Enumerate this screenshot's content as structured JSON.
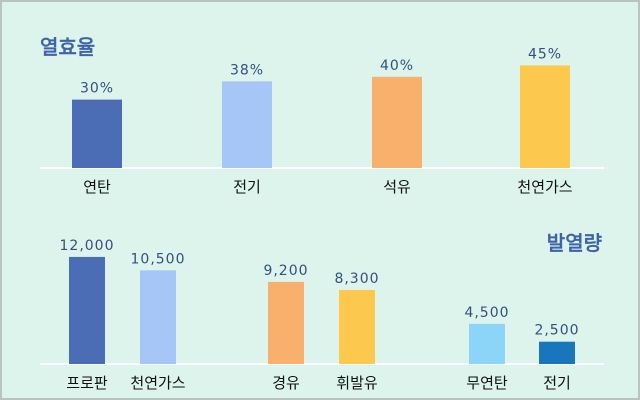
{
  "chart_data": [
    {
      "type": "bar",
      "title": "열효율",
      "categories": [
        "연탄",
        "전기",
        "석유",
        "천연가스"
      ],
      "values": [
        30,
        38,
        40,
        45
      ],
      "value_labels": [
        "30%",
        "38%",
        "40%",
        "45%"
      ],
      "colors": [
        "#4a6db5",
        "#a6c6f8",
        "#f8b06c",
        "#fcc94e"
      ],
      "ylim": [
        0,
        50
      ],
      "grid": false,
      "title_position": "top-left"
    },
    {
      "type": "bar",
      "title": "발열량",
      "categories": [
        "프로판",
        "천연가스",
        "경유",
        "휘발유",
        "무연탄",
        "전기"
      ],
      "values": [
        12000,
        10500,
        9200,
        8300,
        4500,
        2500
      ],
      "value_labels": [
        "12,000",
        "10,500",
        "9,200",
        "8,300",
        "4,500",
        "2,500"
      ],
      "colors": [
        "#4a6db5",
        "#a6c6f8",
        "#f8b06c",
        "#fcc94e",
        "#8dd5f8",
        "#1876bd"
      ],
      "ylim": [
        0,
        13000
      ],
      "grid": false,
      "title_position": "top-right"
    }
  ]
}
